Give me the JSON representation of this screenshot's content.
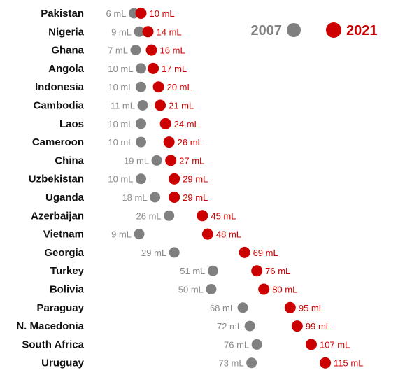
{
  "chart_data": {
    "type": "dumbbell",
    "unit": "mL",
    "series": [
      {
        "name": "2007",
        "color": "#808080"
      },
      {
        "name": "2021",
        "color": "#cc0000"
      }
    ],
    "legend_position": "top-right",
    "grid": false,
    "rows": [
      {
        "country": "Pakistan",
        "v2007": 6,
        "v2021": 10
      },
      {
        "country": "Nigeria",
        "v2007": 9,
        "v2021": 14
      },
      {
        "country": "Ghana",
        "v2007": 7,
        "v2021": 16
      },
      {
        "country": "Angola",
        "v2007": 10,
        "v2021": 17
      },
      {
        "country": "Indonesia",
        "v2007": 10,
        "v2021": 20
      },
      {
        "country": "Cambodia",
        "v2007": 11,
        "v2021": 21
      },
      {
        "country": "Laos",
        "v2007": 10,
        "v2021": 24
      },
      {
        "country": "Cameroon",
        "v2007": 10,
        "v2021": 26
      },
      {
        "country": "China",
        "v2007": 19,
        "v2021": 27
      },
      {
        "country": "Uzbekistan",
        "v2007": 10,
        "v2021": 29
      },
      {
        "country": "Uganda",
        "v2007": 18,
        "v2021": 29
      },
      {
        "country": "Azerbaijan",
        "v2007": 26,
        "v2021": 45
      },
      {
        "country": "Vietnam",
        "v2007": 9,
        "v2021": 48
      },
      {
        "country": "Georgia",
        "v2007": 29,
        "v2021": 69
      },
      {
        "country": "Turkey",
        "v2007": 51,
        "v2021": 76
      },
      {
        "country": "Bolivia",
        "v2007": 50,
        "v2021": 80
      },
      {
        "country": "Paraguay",
        "v2007": 68,
        "v2021": 95
      },
      {
        "country": "N. Macedonia",
        "v2007": 72,
        "v2021": 99
      },
      {
        "country": "South Africa",
        "v2007": 76,
        "v2021": 107
      },
      {
        "country": "Uruguay",
        "v2007": 73,
        "v2021": 115
      }
    ]
  }
}
